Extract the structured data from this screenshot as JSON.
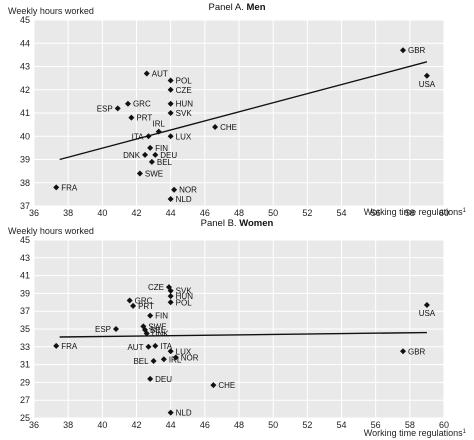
{
  "chart_data": [
    {
      "type": "scatter",
      "title": "Panel A.",
      "title_bold": "Men",
      "ylabel": "Weekly hours worked",
      "xlabel": "Working time regulations",
      "xlabel_mark": "1",
      "xlim": [
        36,
        60
      ],
      "ylim": [
        37,
        45
      ],
      "xticks": [
        36,
        38,
        40,
        42,
        44,
        46,
        48,
        50,
        52,
        54,
        56,
        58,
        60
      ],
      "yticks": [
        37,
        38,
        39,
        40,
        41,
        42,
        43,
        44,
        45
      ],
      "grid": true,
      "trendline": {
        "x": [
          37.5,
          59.0
        ],
        "y": [
          39.0,
          43.2
        ]
      },
      "points": [
        {
          "label": "GBR",
          "x": 57.6,
          "y": 43.7,
          "pos": "right"
        },
        {
          "label": "USA",
          "x": 59.0,
          "y": 42.6,
          "pos": "below"
        },
        {
          "label": "AUT",
          "x": 42.6,
          "y": 42.7,
          "pos": "right"
        },
        {
          "label": "POL",
          "x": 44.0,
          "y": 42.4,
          "pos": "right"
        },
        {
          "label": "CZE",
          "x": 44.0,
          "y": 42.0,
          "pos": "right"
        },
        {
          "label": "HUN",
          "x": 44.0,
          "y": 41.4,
          "pos": "right"
        },
        {
          "label": "GRC",
          "x": 41.5,
          "y": 41.4,
          "pos": "right"
        },
        {
          "label": "ESP",
          "x": 40.9,
          "y": 41.2,
          "pos": "left"
        },
        {
          "label": "SVK",
          "x": 44.0,
          "y": 41.0,
          "pos": "right"
        },
        {
          "label": "PRT",
          "x": 41.7,
          "y": 40.8,
          "pos": "right"
        },
        {
          "label": "CHE",
          "x": 46.6,
          "y": 40.4,
          "pos": "right"
        },
        {
          "label": "IRL",
          "x": 43.3,
          "y": 40.2,
          "pos": "above"
        },
        {
          "label": "ITA",
          "x": 42.7,
          "y": 40.0,
          "pos": "left"
        },
        {
          "label": "LUX",
          "x": 44.0,
          "y": 40.0,
          "pos": "right"
        },
        {
          "label": "FIN",
          "x": 42.8,
          "y": 39.5,
          "pos": "right"
        },
        {
          "label": "DNK",
          "x": 42.5,
          "y": 39.2,
          "pos": "left"
        },
        {
          "label": "DEU",
          "x": 43.1,
          "y": 39.2,
          "pos": "right"
        },
        {
          "label": "BEL",
          "x": 42.9,
          "y": 38.9,
          "pos": "right"
        },
        {
          "label": "SWE",
          "x": 42.2,
          "y": 38.4,
          "pos": "right"
        },
        {
          "label": "FRA",
          "x": 37.3,
          "y": 37.8,
          "pos": "right"
        },
        {
          "label": "NOR",
          "x": 44.2,
          "y": 37.7,
          "pos": "right"
        },
        {
          "label": "NLD",
          "x": 44.0,
          "y": 37.3,
          "pos": "right"
        }
      ]
    },
    {
      "type": "scatter",
      "title": "Panel B.",
      "title_bold": "Women",
      "ylabel": "Weekly hours worked",
      "xlabel": "Working time regulations",
      "xlabel_mark": "1",
      "xlim": [
        36,
        60
      ],
      "ylim": [
        25,
        45
      ],
      "xticks": [
        36,
        38,
        40,
        42,
        44,
        46,
        48,
        50,
        52,
        54,
        56,
        58,
        60
      ],
      "yticks": [
        25,
        27,
        29,
        31,
        33,
        35,
        37,
        39,
        41,
        43,
        45
      ],
      "grid": true,
      "trendline": {
        "x": [
          37.5,
          59.0
        ],
        "y": [
          34.1,
          34.6
        ]
      },
      "points": [
        {
          "label": "CZE",
          "x": 43.9,
          "y": 39.7,
          "pos": "left"
        },
        {
          "label": "SVK",
          "x": 44.0,
          "y": 39.3,
          "pos": "right"
        },
        {
          "label": "HUN",
          "x": 44.0,
          "y": 38.7,
          "pos": "right"
        },
        {
          "label": "GRC",
          "x": 41.6,
          "y": 38.2,
          "pos": "right"
        },
        {
          "label": "POL",
          "x": 44.0,
          "y": 38.0,
          "pos": "right"
        },
        {
          "label": "PRT",
          "x": 41.8,
          "y": 37.6,
          "pos": "right"
        },
        {
          "label": "USA",
          "x": 59.0,
          "y": 37.7,
          "pos": "below"
        },
        {
          "label": "FIN",
          "x": 42.8,
          "y": 36.5,
          "pos": "right"
        },
        {
          "label": "SWE",
          "x": 42.4,
          "y": 35.3,
          "pos": "right"
        },
        {
          "label": "ESP",
          "x": 40.8,
          "y": 35.0,
          "pos": "left"
        },
        {
          "label": "BEL",
          "x": 42.5,
          "y": 34.9,
          "pos": "right"
        },
        {
          "label": "DNK",
          "x": 42.6,
          "y": 34.5,
          "pos": "right"
        },
        {
          "label": "FRA",
          "x": 37.3,
          "y": 33.1,
          "pos": "right"
        },
        {
          "label": "ITA",
          "x": 43.1,
          "y": 33.1,
          "pos": "right"
        },
        {
          "label": "AUT",
          "x": 42.7,
          "y": 33.0,
          "pos": "left"
        },
        {
          "label": "GBR",
          "x": 57.6,
          "y": 32.5,
          "pos": "right"
        },
        {
          "label": "LUX",
          "x": 44.0,
          "y": 32.5,
          "pos": "right"
        },
        {
          "label": "NOR",
          "x": 44.3,
          "y": 31.8,
          "pos": "right"
        },
        {
          "label": "IRL",
          "x": 43.6,
          "y": 31.6,
          "pos": "right"
        },
        {
          "label": "BEL",
          "x": 43.0,
          "y": 31.4,
          "pos": "left"
        },
        {
          "label": "DEU",
          "x": 42.8,
          "y": 29.4,
          "pos": "right"
        },
        {
          "label": "CHE",
          "x": 46.5,
          "y": 28.7,
          "pos": "right"
        },
        {
          "label": "NLD",
          "x": 44.0,
          "y": 25.6,
          "pos": "right"
        }
      ]
    }
  ]
}
